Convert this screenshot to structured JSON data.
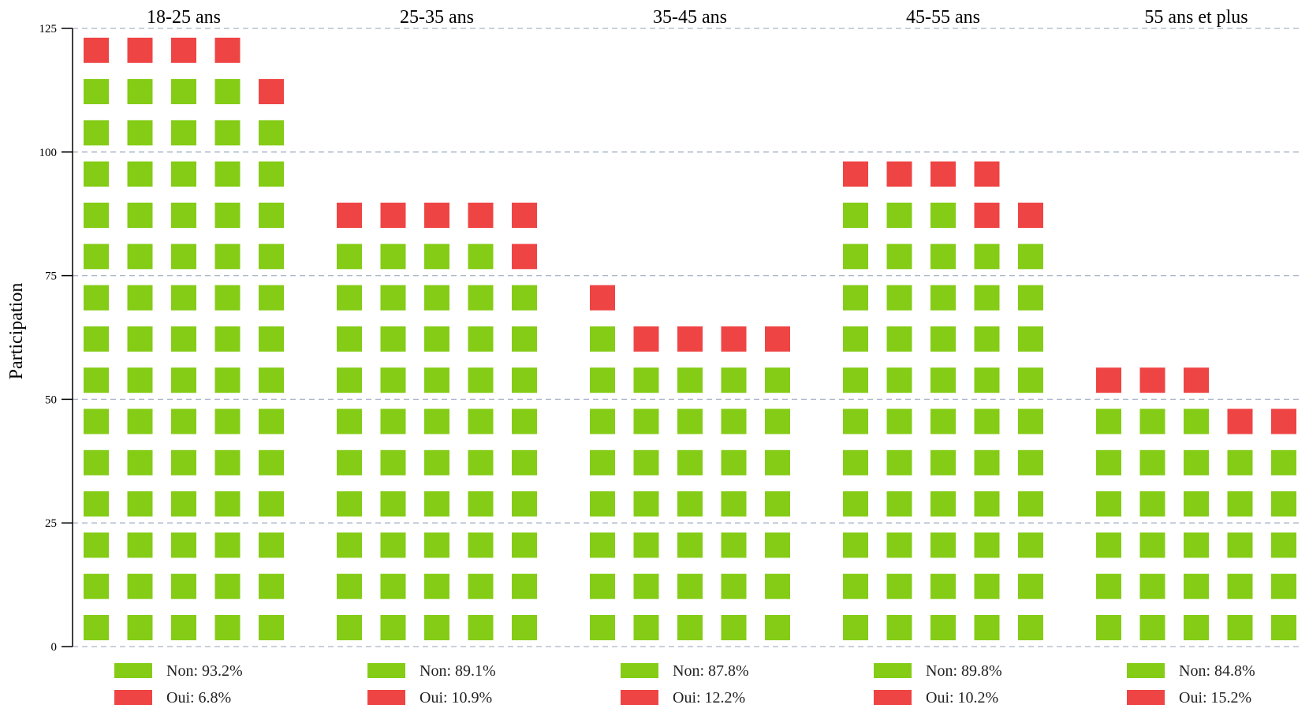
{
  "chart_data": {
    "type": "waffle",
    "ylabel": "Participation",
    "ylim": [
      0,
      125
    ],
    "yticks": [
      0,
      25,
      50,
      75,
      100,
      125
    ],
    "grid": true,
    "colors": {
      "Non": "#84cc16",
      "Oui": "#ef4444"
    },
    "groups": [
      {
        "label": "18-25 ans",
        "non": 69,
        "oui": 5,
        "legend": [
          {
            "key": "Non",
            "text": "Non: 93.2%"
          },
          {
            "key": "Oui",
            "text": "Oui: 6.8%"
          }
        ]
      },
      {
        "label": "25-35 ans",
        "non": 49,
        "oui": 6,
        "legend": [
          {
            "key": "Non",
            "text": "Non: 89.1%"
          },
          {
            "key": "Oui",
            "text": "Oui: 10.9%"
          }
        ]
      },
      {
        "label": "35-45 ans",
        "non": 36,
        "oui": 5,
        "legend": [
          {
            "key": "Non",
            "text": "Non: 87.8%"
          },
          {
            "key": "Oui",
            "text": "Oui: 12.2%"
          }
        ]
      },
      {
        "label": "45-55 ans",
        "non": 53,
        "oui": 6,
        "legend": [
          {
            "key": "Non",
            "text": "Non: 89.8%"
          },
          {
            "key": "Oui",
            "text": "Oui: 10.2%"
          }
        ]
      },
      {
        "label": "55 ans et plus",
        "non": 28,
        "oui": 5,
        "legend": [
          {
            "key": "Non",
            "text": "Non: 84.8%"
          },
          {
            "key": "Oui",
            "text": "Oui: 15.2%"
          }
        ]
      }
    ]
  }
}
